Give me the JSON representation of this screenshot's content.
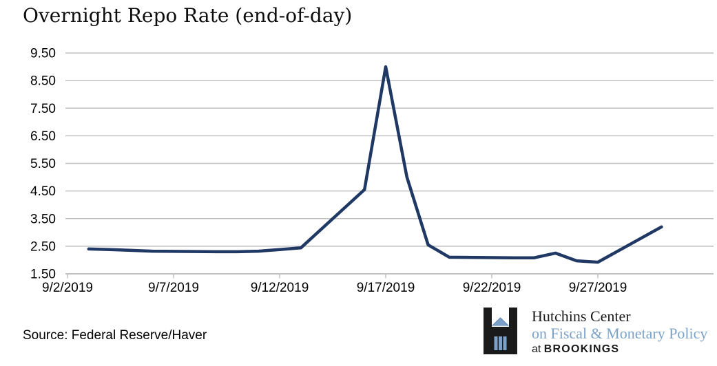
{
  "chart_data": {
    "type": "line",
    "title": "Overnight Repo Rate (end-of-day)",
    "xlabel": "",
    "ylabel": "",
    "ylim": [
      1.5,
      9.5
    ],
    "y_tick_step": 1.0,
    "y_tick_labels": [
      "1.50",
      "2.50",
      "3.50",
      "4.50",
      "5.50",
      "6.50",
      "7.50",
      "8.50",
      "9.50"
    ],
    "x_tick_labels": [
      "9/2/2019",
      "9/7/2019",
      "9/12/2019",
      "9/17/2019",
      "9/22/2019",
      "9/27/2019"
    ],
    "x_tick_days": [
      2,
      7,
      12,
      17,
      22,
      27
    ],
    "grid": "horizontal",
    "legend": "none",
    "line_color": "#1f3864",
    "grid_color": "#c0c0c0",
    "axis_text_color": "#000000",
    "series": [
      {
        "name": "Overnight repo rate (end-of-day)",
        "points": [
          {
            "date": "9/3/2019",
            "day": 3,
            "value": 2.4
          },
          {
            "date": "9/4/2019",
            "day": 4,
            "value": 2.38
          },
          {
            "date": "9/5/2019",
            "day": 5,
            "value": 2.35
          },
          {
            "date": "9/6/2019",
            "day": 6,
            "value": 2.32
          },
          {
            "date": "9/9/2019",
            "day": 9,
            "value": 2.3
          },
          {
            "date": "9/10/2019",
            "day": 10,
            "value": 2.3
          },
          {
            "date": "9/11/2019",
            "day": 11,
            "value": 2.32
          },
          {
            "date": "9/12/2019",
            "day": 12,
            "value": 2.38
          },
          {
            "date": "9/13/2019",
            "day": 13,
            "value": 2.44
          },
          {
            "date": "9/16/2019",
            "day": 16,
            "value": 4.55
          },
          {
            "date": "9/17/2019",
            "day": 17,
            "value": 9.0
          },
          {
            "date": "9/18/2019",
            "day": 18,
            "value": 5.0
          },
          {
            "date": "9/19/2019",
            "day": 19,
            "value": 2.55
          },
          {
            "date": "9/20/2019",
            "day": 20,
            "value": 2.1
          },
          {
            "date": "9/23/2019",
            "day": 23,
            "value": 2.08
          },
          {
            "date": "9/24/2019",
            "day": 24,
            "value": 2.08
          },
          {
            "date": "9/25/2019",
            "day": 25,
            "value": 2.25
          },
          {
            "date": "9/26/2019",
            "day": 26,
            "value": 1.97
          },
          {
            "date": "9/27/2019",
            "day": 27,
            "value": 1.92
          },
          {
            "date": "9/30/2019",
            "day": 30,
            "value": 3.2
          }
        ]
      }
    ]
  },
  "footer": {
    "source": "Source: Federal Reserve/Haver",
    "logo": {
      "line1": "Hutchins Center",
      "line2": "on Fiscal & Monetary Policy",
      "line3_prefix": "at ",
      "line3_org": "BROOKINGS",
      "blue": "#7ca1c9",
      "black": "#1a1a1a"
    }
  }
}
